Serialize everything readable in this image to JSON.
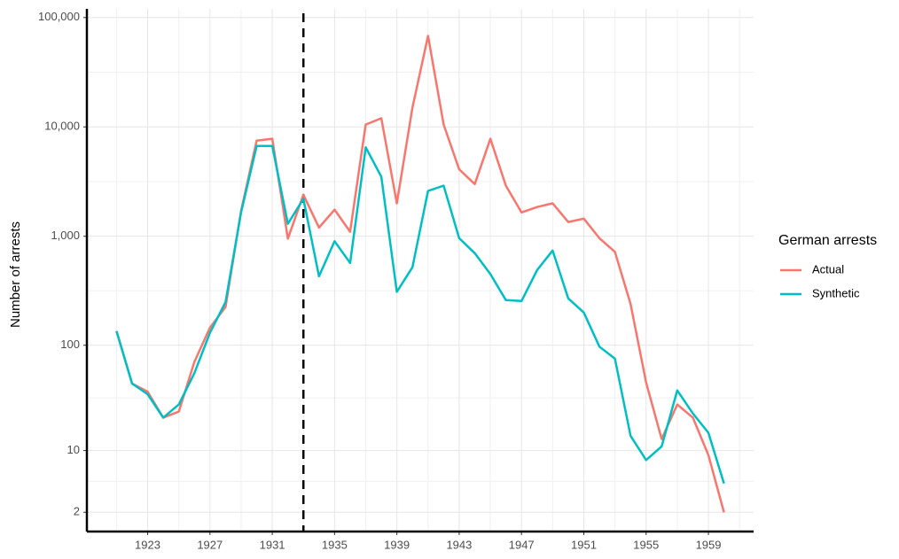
{
  "chart_data": {
    "type": "line",
    "y_label": "Number of arrests",
    "legend_title": "German arrests",
    "legend_position": "right",
    "y_transform": "log1p",
    "grid": true,
    "vline": 1933,
    "x": [
      1921,
      1922,
      1923,
      1924,
      1925,
      1926,
      1927,
      1928,
      1929,
      1930,
      1931,
      1932,
      1933,
      1934,
      1935,
      1936,
      1937,
      1938,
      1939,
      1940,
      1941,
      1942,
      1943,
      1944,
      1945,
      1946,
      1947,
      1948,
      1949,
      1950,
      1951,
      1952,
      1953,
      1954,
      1955,
      1956,
      1957,
      1958,
      1959,
      1960
    ],
    "series": [
      {
        "name": "Actual",
        "color": "#F8766D",
        "values": [
          135,
          44,
          37,
          21,
          24,
          70,
          145,
          225,
          1700,
          7500,
          7800,
          950,
          2400,
          1200,
          1750,
          1100,
          10500,
          12000,
          2000,
          15000,
          68000,
          10500,
          4100,
          3000,
          7800,
          2900,
          1650,
          1850,
          2000,
          1350,
          1450,
          960,
          720,
          240,
          45,
          13,
          28,
          21,
          9,
          2
        ]
      },
      {
        "name": "Synthetic",
        "color": "#00BFC4",
        "values": [
          135,
          44,
          35,
          21,
          28,
          55,
          130,
          250,
          1650,
          6700,
          6700,
          1300,
          2200,
          430,
          900,
          570,
          6500,
          3500,
          310,
          520,
          2600,
          2900,
          960,
          700,
          450,
          260,
          255,
          490,
          740,
          270,
          200,
          97,
          75,
          14,
          8,
          11,
          38,
          23,
          15,
          4.5
        ]
      }
    ],
    "xlim": [
      1919.1,
      1961.9
    ],
    "xticks": [
      1923,
      1927,
      1931,
      1935,
      1939,
      1943,
      1947,
      1951,
      1955,
      1959
    ],
    "ylim": [
      1,
      120000
    ],
    "yticks": [
      2,
      10,
      100,
      {
        "value": 1000,
        "label": "1,000"
      },
      {
        "value": 10000,
        "label": "10,000"
      },
      {
        "value": 100000,
        "label": "100,000"
      }
    ]
  }
}
